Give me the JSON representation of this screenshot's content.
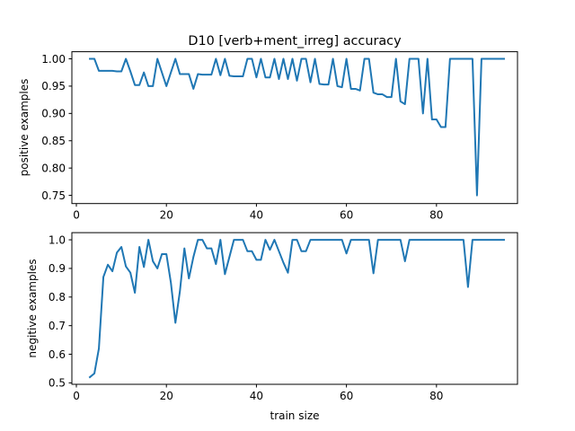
{
  "chart_data": [
    {
      "type": "line",
      "title": "D10 [verb+ment_irreg] accuracy",
      "xlabel": "",
      "ylabel": "positive examples",
      "xlim": [
        -1,
        98
      ],
      "ylim": [
        0.735,
        1.013
      ],
      "xticks": [
        0,
        20,
        40,
        60,
        80
      ],
      "xtick_labels": [
        "0",
        "20",
        "40",
        "60",
        "80"
      ],
      "yticks": [
        0.75,
        0.8,
        0.85,
        0.9,
        0.95,
        1.0
      ],
      "ytick_labels": [
        "0.75",
        "0.80",
        "0.85",
        "0.90",
        "0.95",
        "1.00"
      ],
      "grid": false,
      "color": "#1f77b4",
      "series": [
        {
          "x": [
            3,
            4,
            5,
            6,
            7,
            8,
            9,
            10,
            11,
            12,
            13,
            14,
            15,
            16,
            17,
            18,
            19,
            20,
            21,
            22,
            23,
            24,
            25,
            26,
            27,
            28,
            29,
            30,
            31,
            32,
            33,
            34,
            35,
            36,
            37,
            38,
            39,
            40,
            41,
            42,
            43,
            44,
            45,
            46,
            47,
            48,
            49,
            50,
            51,
            52,
            53,
            54,
            55,
            56,
            57,
            58,
            59,
            60,
            61,
            62,
            63,
            64,
            65,
            66,
            67,
            68,
            69,
            70,
            71,
            72,
            73,
            74,
            75,
            76,
            77,
            78,
            79,
            80,
            81,
            82,
            83,
            84,
            85,
            86,
            87,
            88,
            89,
            90,
            91,
            92,
            93,
            94,
            95
          ],
          "y": [
            1.0,
            1.0,
            0.978,
            0.978,
            0.978,
            0.978,
            0.977,
            0.977,
            1.0,
            0.977,
            0.952,
            0.952,
            0.975,
            0.95,
            0.95,
            1.0,
            0.975,
            0.95,
            0.975,
            1.0,
            0.972,
            0.972,
            0.972,
            0.945,
            0.972,
            0.971,
            0.971,
            0.971,
            1.0,
            0.97,
            1.0,
            0.969,
            0.968,
            0.968,
            0.968,
            1.0,
            1.0,
            0.966,
            1.0,
            0.966,
            0.966,
            1.0,
            0.963,
            1.0,
            0.963,
            1.0,
            0.96,
            1.0,
            1.0,
            0.957,
            1.0,
            0.954,
            0.953,
            0.953,
            1.0,
            0.95,
            0.948,
            1.0,
            0.945,
            0.945,
            0.942,
            1.0,
            1.0,
            0.938,
            0.935,
            0.935,
            0.93,
            0.93,
            1.0,
            0.922,
            0.917,
            1.0,
            1.0,
            1.0,
            0.9,
            1.0,
            0.889,
            0.889,
            0.875,
            0.875,
            1.0,
            1.0,
            1.0,
            1.0,
            1.0,
            1.0,
            0.75,
            1.0,
            1.0,
            1.0,
            1.0,
            1.0,
            1.0
          ]
        }
      ]
    },
    {
      "type": "line",
      "title": "",
      "xlabel": "train size",
      "ylabel": "negitive examples",
      "xlim": [
        -1,
        98
      ],
      "ylim": [
        0.495,
        1.025
      ],
      "xticks": [
        0,
        20,
        40,
        60,
        80
      ],
      "xtick_labels": [
        "0",
        "20",
        "40",
        "60",
        "80"
      ],
      "yticks": [
        0.5,
        0.6,
        0.7,
        0.8,
        0.9,
        1.0
      ],
      "ytick_labels": [
        "0.5",
        "0.6",
        "0.7",
        "0.8",
        "0.9",
        "1.0"
      ],
      "grid": false,
      "color": "#1f77b4",
      "series": [
        {
          "x": [
            3,
            4,
            5,
            6,
            7,
            8,
            9,
            10,
            11,
            12,
            13,
            14,
            15,
            16,
            17,
            18,
            19,
            20,
            21,
            22,
            23,
            24,
            25,
            26,
            27,
            28,
            29,
            30,
            31,
            32,
            33,
            34,
            35,
            36,
            37,
            38,
            39,
            40,
            41,
            42,
            43,
            44,
            45,
            46,
            47,
            48,
            49,
            50,
            51,
            52,
            53,
            54,
            55,
            56,
            57,
            58,
            59,
            60,
            61,
            62,
            63,
            64,
            65,
            66,
            67,
            68,
            69,
            70,
            71,
            72,
            73,
            74,
            75,
            76,
            77,
            78,
            79,
            80,
            81,
            82,
            83,
            84,
            85,
            86,
            87,
            88,
            89,
            90,
            91,
            92,
            93,
            94,
            95
          ],
          "y": [
            0.52,
            0.533,
            0.62,
            0.87,
            0.913,
            0.89,
            0.955,
            0.975,
            0.907,
            0.885,
            0.815,
            0.975,
            0.905,
            1.0,
            0.925,
            0.9,
            0.95,
            0.95,
            0.85,
            0.71,
            0.82,
            0.97,
            0.865,
            0.94,
            1.0,
            1.0,
            0.97,
            0.97,
            0.915,
            1.0,
            0.88,
            0.94,
            1.0,
            1.0,
            1.0,
            0.96,
            0.96,
            0.93,
            0.93,
            1.0,
            0.965,
            1.0,
            0.96,
            0.92,
            0.885,
            1.0,
            1.0,
            0.96,
            0.96,
            1.0,
            1.0,
            1.0,
            1.0,
            1.0,
            1.0,
            1.0,
            1.0,
            0.952,
            1.0,
            1.0,
            1.0,
            1.0,
            1.0,
            0.883,
            1.0,
            1.0,
            1.0,
            1.0,
            1.0,
            1.0,
            0.925,
            1.0,
            1.0,
            1.0,
            1.0,
            1.0,
            1.0,
            1.0,
            1.0,
            1.0,
            1.0,
            1.0,
            1.0,
            1.0,
            0.835,
            1.0,
            1.0,
            1.0,
            1.0,
            1.0,
            1.0,
            1.0,
            1.0
          ]
        }
      ]
    }
  ]
}
